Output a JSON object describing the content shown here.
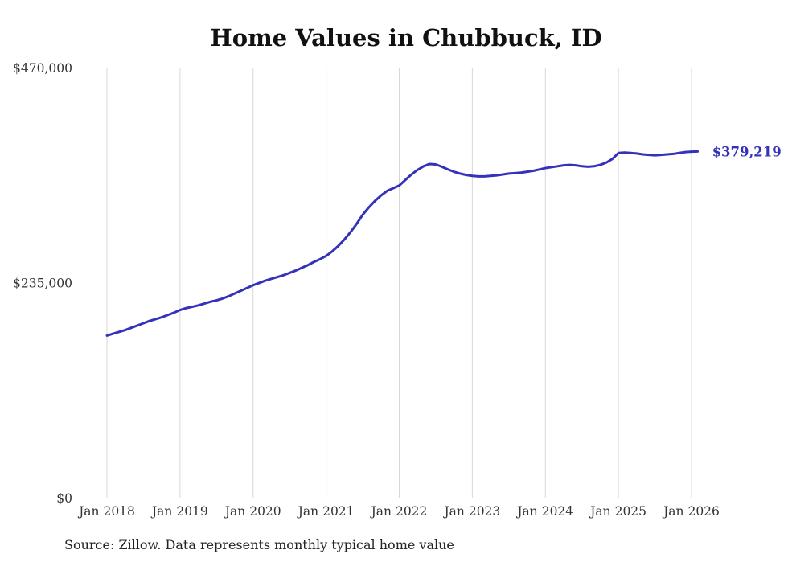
{
  "title": "Home Values in Chubbuck, ID",
  "end_label": "$379,219",
  "source_note": "Source: Zillow. Data represents monthly typical home value",
  "colors": {
    "line": "#3432b8",
    "grid": "#d7d7d7",
    "text": "#333333",
    "title": "#111111",
    "background": "#ffffff"
  },
  "chart_data": {
    "type": "line",
    "title": "Home Values in Chubbuck, ID",
    "series_name": "Typical home value",
    "frequency": "monthly",
    "x_start": "2018-01",
    "x_end": "2026-02",
    "ylim": [
      0,
      470000
    ],
    "grid": "vertical-only",
    "legend": "none",
    "y_ticks": [
      {
        "value": 470000,
        "label": "$470,000"
      },
      {
        "value": 235000,
        "label": "$235,000"
      },
      {
        "value": 0,
        "label": "$0"
      }
    ],
    "x_ticks": [
      {
        "month_index": 0,
        "label": "Jan 2018"
      },
      {
        "month_index": 12,
        "label": "Jan 2019"
      },
      {
        "month_index": 24,
        "label": "Jan 2020"
      },
      {
        "month_index": 36,
        "label": "Jan 2021"
      },
      {
        "month_index": 48,
        "label": "Jan 2022"
      },
      {
        "month_index": 60,
        "label": "Jan 2023"
      },
      {
        "month_index": 72,
        "label": "Jan 2024"
      },
      {
        "month_index": 84,
        "label": "Jan 2025"
      },
      {
        "month_index": 96,
        "label": "Jan 2026"
      }
    ],
    "values": [
      178000,
      180000,
      182000,
      184000,
      186500,
      189000,
      191500,
      194000,
      196000,
      198000,
      200500,
      203000,
      206000,
      208000,
      209500,
      211000,
      213000,
      215000,
      216500,
      218500,
      221000,
      224000,
      227000,
      230000,
      233000,
      235500,
      238000,
      240000,
      242000,
      244000,
      246500,
      249000,
      252000,
      255000,
      258500,
      261500,
      265000,
      270000,
      276000,
      283000,
      291000,
      300000,
      310000,
      318000,
      325000,
      331000,
      336000,
      339000,
      342000,
      348000,
      354000,
      359000,
      363000,
      365500,
      365000,
      362500,
      359500,
      357000,
      355000,
      353500,
      352500,
      352000,
      352000,
      352500,
      353000,
      354000,
      355000,
      355500,
      356000,
      357000,
      358000,
      359500,
      361000,
      362000,
      363000,
      364000,
      364500,
      364000,
      363000,
      362500,
      363000,
      364500,
      367000,
      371000,
      377500,
      378000,
      377500,
      377000,
      376000,
      375500,
      375000,
      375500,
      376000,
      376500,
      377500,
      378500,
      379000,
      379219
    ],
    "end_value": 379219
  }
}
